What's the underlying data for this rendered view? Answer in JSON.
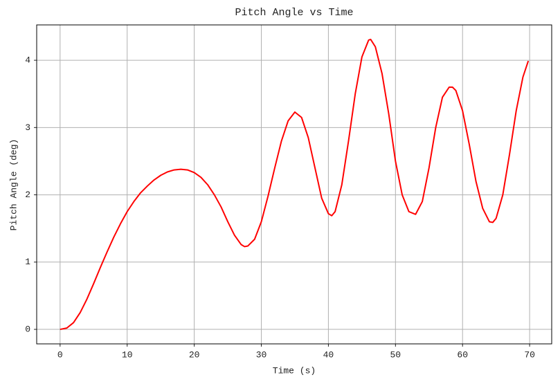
{
  "chart_data": {
    "type": "line",
    "title": "Pitch Angle vs Time",
    "x_label": "Time (s)",
    "y_label": "Pitch Angle (deg)",
    "x": [
      0,
      1,
      2,
      3,
      4,
      5,
      6,
      7,
      8,
      9,
      10,
      11,
      12,
      13,
      14,
      15,
      16,
      17,
      18,
      19,
      20,
      21,
      22,
      23,
      24,
      25,
      26,
      27,
      27.5,
      28,
      29,
      30,
      31,
      32,
      33,
      34,
      35,
      36,
      37,
      38,
      39,
      40,
      40.5,
      41,
      42,
      43,
      44,
      45,
      46,
      46.3,
      47,
      48,
      49,
      50,
      51,
      52,
      53,
      54,
      55,
      56,
      57,
      58,
      58.5,
      59,
      60,
      61,
      62,
      63,
      64,
      64.5,
      65,
      66,
      67,
      68,
      69,
      69.8
    ],
    "series": [
      {
        "name": "Pitch Angle",
        "color": "#ff0000",
        "values": [
          0,
          0.02,
          0.1,
          0.25,
          0.45,
          0.68,
          0.92,
          1.15,
          1.37,
          1.57,
          1.75,
          1.9,
          2.03,
          2.13,
          2.22,
          2.29,
          2.34,
          2.37,
          2.38,
          2.37,
          2.33,
          2.26,
          2.15,
          2.0,
          1.82,
          1.6,
          1.4,
          1.26,
          1.23,
          1.24,
          1.34,
          1.6,
          1.98,
          2.4,
          2.8,
          3.1,
          3.23,
          3.15,
          2.85,
          2.4,
          1.95,
          1.72,
          1.69,
          1.75,
          2.15,
          2.8,
          3.5,
          4.05,
          4.3,
          4.31,
          4.2,
          3.8,
          3.2,
          2.5,
          2.0,
          1.75,
          1.71,
          1.9,
          2.4,
          3.0,
          3.45,
          3.6,
          3.6,
          3.55,
          3.25,
          2.75,
          2.2,
          1.8,
          1.6,
          1.59,
          1.65,
          2.0,
          2.6,
          3.25,
          3.75,
          3.99
        ]
      }
    ],
    "xlim": [
      -3.49,
      73.29
    ],
    "ylim": [
      -0.2155,
      4.5255
    ],
    "xticks": [
      0,
      10,
      20,
      30,
      40,
      50,
      60,
      70
    ],
    "yticks": [
      0,
      1,
      2,
      3,
      4
    ],
    "grid": true
  }
}
